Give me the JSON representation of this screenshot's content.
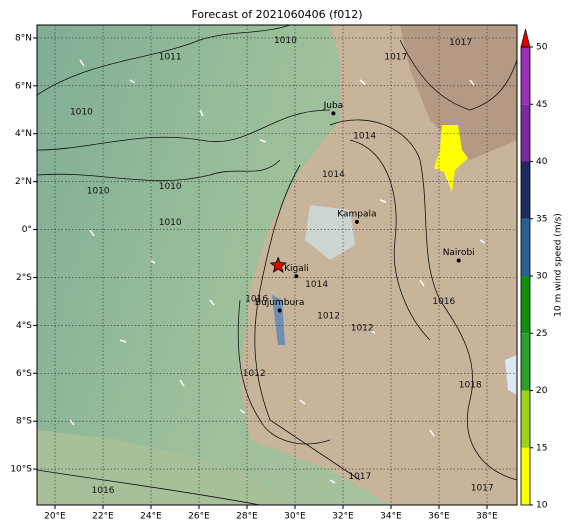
{
  "title": "Forecast of 2021060406 (f012)",
  "map": {
    "xlim": [
      19.25,
      39.25
    ],
    "ylim": [
      -11.5,
      8.54
    ],
    "lon_ticks": [
      {
        "value": 20,
        "label": "20°E"
      },
      {
        "value": 22,
        "label": "22°E"
      },
      {
        "value": 24,
        "label": "24°E"
      },
      {
        "value": 26,
        "label": "26°E"
      },
      {
        "value": 28,
        "label": "28°E"
      },
      {
        "value": 30,
        "label": "30°E"
      },
      {
        "value": 32,
        "label": "32°E"
      },
      {
        "value": 34,
        "label": "34°E"
      },
      {
        "value": 36,
        "label": "36°E"
      },
      {
        "value": 38,
        "label": "38°E"
      }
    ],
    "lat_ticks": [
      {
        "value": 8,
        "label": "8°N"
      },
      {
        "value": 6,
        "label": "6°N"
      },
      {
        "value": 4,
        "label": "4°N"
      },
      {
        "value": 2,
        "label": "2°N"
      },
      {
        "value": 0,
        "label": "0°"
      },
      {
        "value": -2,
        "label": "2°S"
      },
      {
        "value": -4,
        "label": "4°S"
      },
      {
        "value": -6,
        "label": "6°S"
      },
      {
        "value": -8,
        "label": "8°S"
      },
      {
        "value": -10,
        "label": "10°S"
      }
    ],
    "cities": [
      {
        "name": "Juba",
        "lon": 31.6,
        "lat": 4.85
      },
      {
        "name": "Kampala",
        "lon": 32.58,
        "lat": 0.32
      },
      {
        "name": "Nairobi",
        "lon": 36.82,
        "lat": -1.29
      },
      {
        "name": "Kigali",
        "lon": 30.06,
        "lat": -1.95
      },
      {
        "name": "Bujumbura",
        "lon": 29.36,
        "lat": -3.38
      }
    ],
    "star": {
      "lon": 29.3,
      "lat": -1.5
    },
    "contour_labels": [
      {
        "text": "1010",
        "lon": 29.6,
        "lat": 7.9
      },
      {
        "text": "1011",
        "lon": 24.8,
        "lat": 7.2
      },
      {
        "text": "1010",
        "lon": 21.1,
        "lat": 4.9
      },
      {
        "text": "1010",
        "lon": 21.8,
        "lat": 1.6
      },
      {
        "text": "1010",
        "lon": 24.8,
        "lat": 1.8
      },
      {
        "text": "1010",
        "lon": 24.8,
        "lat": 0.3
      },
      {
        "text": "1014",
        "lon": 32.9,
        "lat": 3.9
      },
      {
        "text": "1014",
        "lon": 31.6,
        "lat": 2.3
      },
      {
        "text": "1014",
        "lon": 30.9,
        "lat": -2.3
      },
      {
        "text": "1012",
        "lon": 32.8,
        "lat": -4.1
      },
      {
        "text": "1012",
        "lon": 31.4,
        "lat": -3.6
      },
      {
        "text": "1012",
        "lon": 28.3,
        "lat": -6.0
      },
      {
        "text": "1016",
        "lon": 28.4,
        "lat": -2.9
      },
      {
        "text": "1016",
        "lon": 36.2,
        "lat": -3.0
      },
      {
        "text": "1018",
        "lon": 37.3,
        "lat": -6.5
      },
      {
        "text": "1016",
        "lon": 22.0,
        "lat": -10.9
      },
      {
        "text": "1017",
        "lon": 37.8,
        "lat": -10.8
      },
      {
        "text": "1017",
        "lon": 32.7,
        "lat": -10.3
      },
      {
        "text": "1017",
        "lon": 34.2,
        "lat": 7.2
      },
      {
        "text": "1017",
        "lon": 36.9,
        "lat": 7.8
      }
    ]
  },
  "colorbar": {
    "label": "10 m wind speed (m/s)",
    "ticks": [
      10,
      15,
      20,
      25,
      30,
      35,
      40,
      45,
      50
    ],
    "colors": [
      "#ffff00",
      "#9ad21c",
      "#2ca02c",
      "#10900f",
      "#2a6090",
      "#1e2a5c",
      "#7a2aa0",
      "#9a30b8"
    ],
    "extend_color": "#e00000"
  }
}
